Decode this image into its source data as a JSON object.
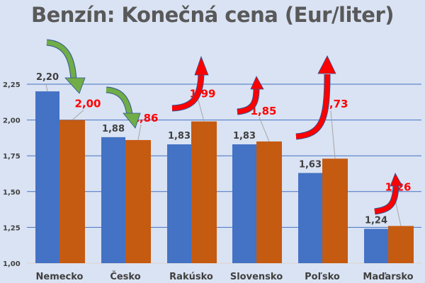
{
  "chart_data": {
    "type": "bar",
    "title": "Benzín: Konečná cena (Eur/liter)",
    "categories": [
      "Nemecko",
      "Česko",
      "Rakúsko",
      "Slovensko",
      "Poľsko",
      "Maďarsko"
    ],
    "series": [
      {
        "values": [
          2.2,
          1.88,
          1.83,
          1.83,
          1.63,
          1.24
        ],
        "labels": [
          "2,20",
          "1,88",
          "1,83",
          "1,83",
          "1,63",
          "1,24"
        ],
        "color": "#4472c4",
        "label_color": "#404040"
      },
      {
        "values": [
          2.0,
          1.86,
          1.99,
          1.85,
          1.73,
          1.26
        ],
        "labels": [
          "2,00",
          "1,86",
          "1,99",
          "1,85",
          "1,73",
          "1,26"
        ],
        "color": "#c55a11",
        "label_color": "#ff0000"
      }
    ],
    "ylim": [
      1.0,
      2.25
    ],
    "yticks": [
      "1,00",
      "1,25",
      "1,50",
      "1,75",
      "2,00",
      "2,25"
    ],
    "grid": true,
    "annotations": {
      "arrows_down_green": [
        "Nemecko",
        "Česko"
      ],
      "arrows_up_red": [
        "Rakúsko",
        "Slovensko",
        "Poľsko",
        "Maďarsko"
      ],
      "green_color": "#70ad47",
      "red_color": "#ff0000"
    },
    "background": "#dae3f3"
  }
}
